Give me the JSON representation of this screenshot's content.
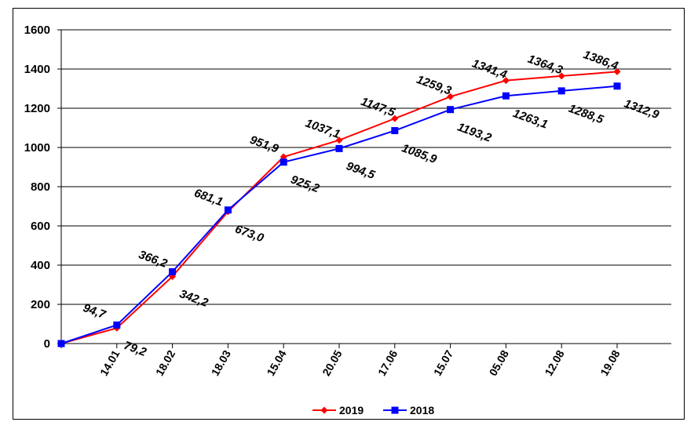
{
  "chart_data": {
    "type": "line",
    "categories": [
      "",
      "14.01",
      "18.02",
      "18.03",
      "15.04",
      "20.05",
      "17.06",
      "15.07",
      "05.08",
      "12.08",
      "19.08"
    ],
    "series": [
      {
        "name": "2019",
        "color": "#ff0000",
        "marker": "diamond",
        "values": [
          0,
          79.2,
          342.2,
          673.0,
          951.9,
          1037.1,
          1147.5,
          1259.3,
          1341.4,
          1364.3,
          1386.4
        ],
        "labels": [
          "",
          "79,2",
          "342,2",
          "673,0",
          "951,9",
          "1037,1",
          "1147,5",
          "1259,3",
          "1341,4",
          "1364,3",
          "1386,4"
        ]
      },
      {
        "name": "2018",
        "color": "#0000ff",
        "marker": "square",
        "values": [
          0,
          94.7,
          366.2,
          681.1,
          925.2,
          994.5,
          1085.9,
          1193.2,
          1263.1,
          1288.5,
          1312.9
        ],
        "labels": [
          "",
          "94,7",
          "366,2",
          "681,1",
          "925,2",
          "994,5",
          "1085,9",
          "1193,2",
          "1263,1",
          "1288,5",
          "1312,9"
        ]
      }
    ],
    "yticks": [
      0,
      200,
      400,
      600,
      800,
      1000,
      1200,
      1400,
      1600
    ],
    "ylim": [
      0,
      1600
    ],
    "grid": true,
    "legend_position": "bottom"
  }
}
